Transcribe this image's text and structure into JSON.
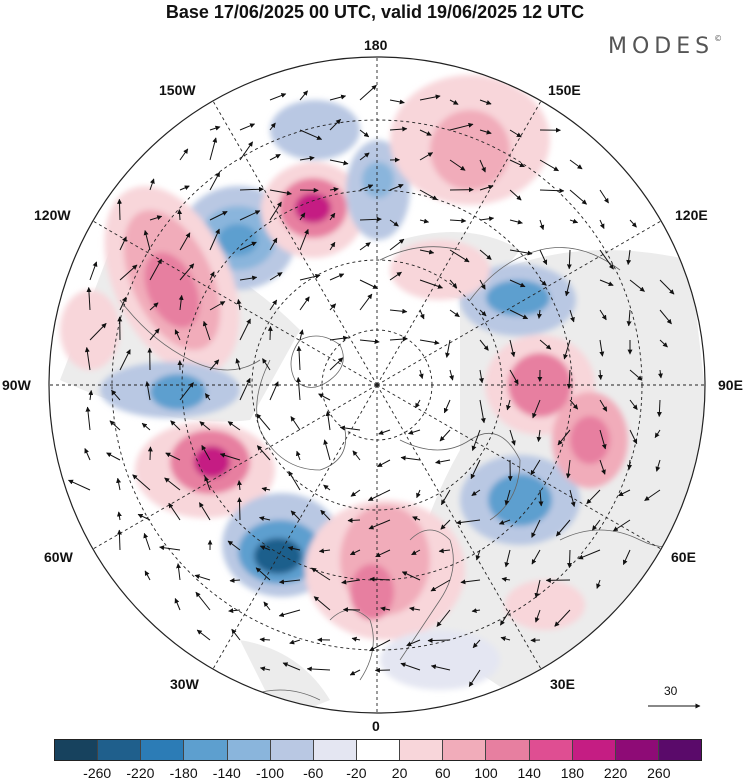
{
  "title": "Base 17/06/2025 00 UTC, valid 19/06/2025 12 UTC",
  "brand": "MODES",
  "brand_mark": "©",
  "longitude_labels": {
    "top": "180",
    "top_left": "150W",
    "top_right": "150E",
    "upper_left": "120W",
    "upper_right": "120E",
    "left": "90W",
    "right": "90E",
    "lower_left": "60W",
    "lower_right": "60E",
    "bottom_left": "30W",
    "bottom_right": "30E",
    "bottom": "0"
  },
  "reference_vector": {
    "label": "30",
    "icon": "arrow-right-icon"
  },
  "colorbar": {
    "ticks": [
      "-260",
      "-220",
      "-180",
      "-140",
      "-100",
      "-60",
      "-20",
      "20",
      "60",
      "100",
      "140",
      "180",
      "220",
      "260"
    ],
    "colors": [
      "#17425e",
      "#1f5f8c",
      "#2c7cb6",
      "#5d9fcf",
      "#8ab5dc",
      "#b9c8e3",
      "#e4e6f2",
      "#ffffff",
      "#f8d6da",
      "#f1acba",
      "#e77fa0",
      "#df4e92",
      "#c51d83",
      "#8e0b76",
      "#5a0a6a"
    ]
  },
  "anomalies": [
    {
      "name": "negative-anomaly-north-pacific",
      "level": "-180"
    },
    {
      "name": "positive-anomaly-bering",
      "level": "220"
    },
    {
      "name": "negative-anomaly-alaska",
      "level": "-100"
    },
    {
      "name": "positive-anomaly-east-siberian",
      "level": "100"
    },
    {
      "name": "positive-anomaly-northeast-pacific",
      "level": "180"
    },
    {
      "name": "negative-anomaly-central-canada",
      "level": "-180"
    },
    {
      "name": "positive-anomaly-northwest-atlantic",
      "level": "220"
    },
    {
      "name": "negative-anomaly-north-atlantic",
      "level": "-220"
    },
    {
      "name": "positive-anomaly-europe",
      "level": "140"
    },
    {
      "name": "negative-anomaly-western-siberia",
      "level": "-180"
    },
    {
      "name": "positive-anomaly-central-siberia",
      "level": "140"
    },
    {
      "name": "positive-anomaly-siberia-south",
      "level": "140"
    },
    {
      "name": "negative-anomaly-east-siberia",
      "level": "-180"
    }
  ]
}
